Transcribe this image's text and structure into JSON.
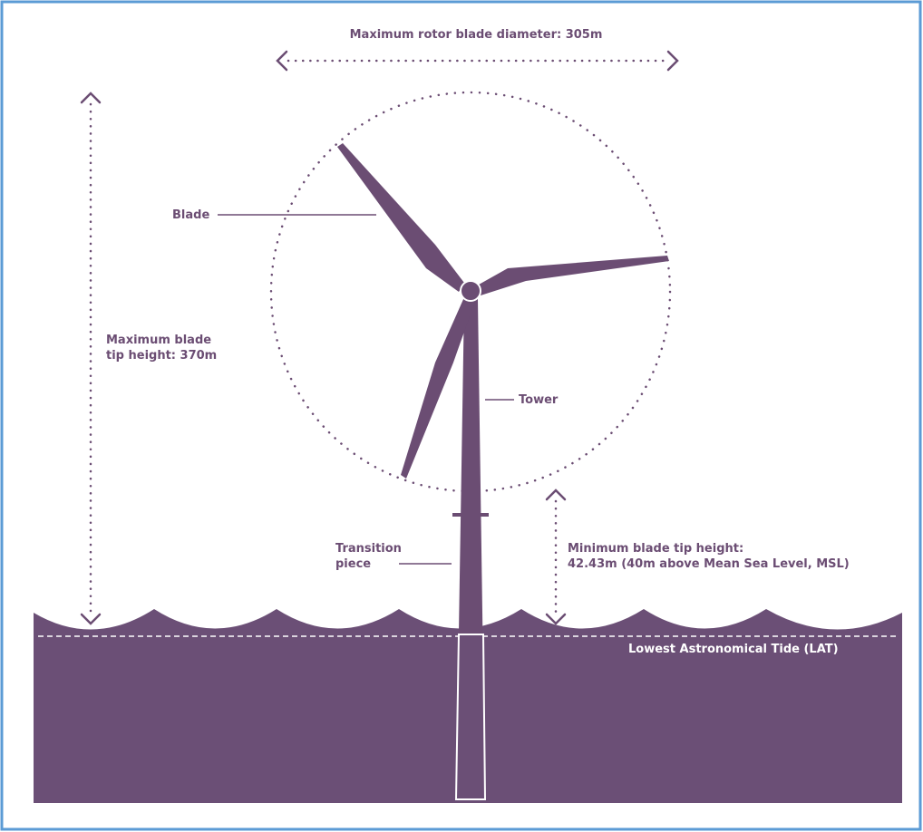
{
  "labels": {
    "rotor_diameter": "Maximum rotor blade diameter: 305m",
    "blade": "Blade",
    "max_tip_height": [
      "Maximum blade",
      "tip height: 370m"
    ],
    "tower": "Tower",
    "transition_piece": [
      "Transition",
      "piece"
    ],
    "min_tip_height": [
      "Minimum blade tip height:",
      "42.43m (40m above Mean Sea Level, MSL)"
    ],
    "lat": "Lowest Astronomical Tide (LAT)"
  }
}
